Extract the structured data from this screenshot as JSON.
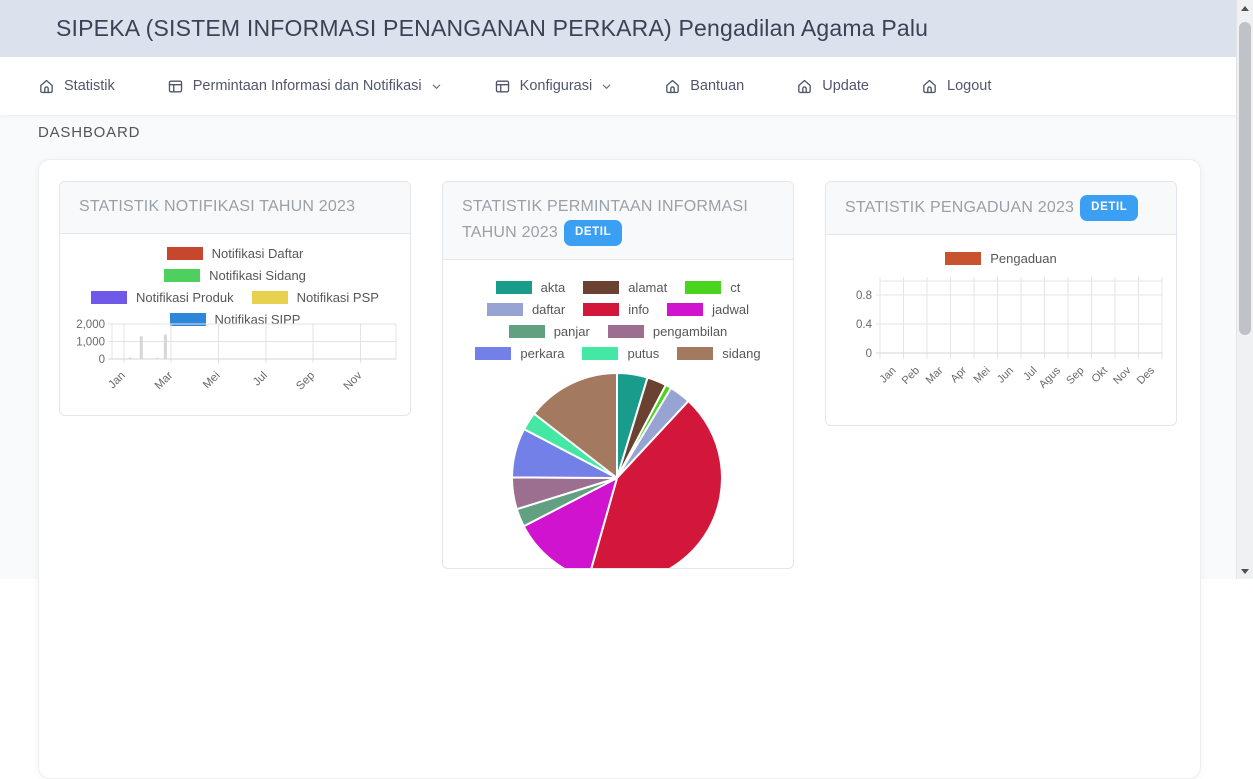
{
  "header": {
    "title": "SIPEKA (SISTEM INFORMASI PENANGANAN PERKARA) Pengadilan Agama Palu"
  },
  "navbar": {
    "items": [
      {
        "label": "Statistik",
        "icon": "home",
        "has_dropdown": false
      },
      {
        "label": "Permintaan Informasi dan Notifikasi",
        "icon": "window",
        "has_dropdown": true
      },
      {
        "label": "Konfigurasi",
        "icon": "window",
        "has_dropdown": true
      },
      {
        "label": "Bantuan",
        "icon": "home",
        "has_dropdown": false
      },
      {
        "label": "Update",
        "icon": "home",
        "has_dropdown": false
      },
      {
        "label": "Logout",
        "icon": "home",
        "has_dropdown": false
      }
    ]
  },
  "breadcrumb": "DASHBOARD",
  "theme": {
    "header_bg": "#dbe2ed",
    "accent_blue": "#3b9ff3",
    "panel_title_color": "#9aa0a8"
  },
  "chart_data": [
    {
      "id": "notifikasi",
      "type": "bar",
      "title": "STATISTIK NOTIFIKASI TAHUN 2023",
      "legend": {
        "entries": [
          {
            "label": "Notifikasi Daftar",
            "color": "#c7472e"
          },
          {
            "label": "Notifikasi Sidang",
            "color": "#4dd05e"
          },
          {
            "label": "Notifikasi Produk",
            "color": "#7058e8"
          },
          {
            "label": "Notifikasi PSP",
            "color": "#e6d24e"
          },
          {
            "label": "Notifikasi SIPP",
            "color": "#2e86d9"
          }
        ],
        "rows": [
          [
            0
          ],
          [
            1
          ],
          [
            2,
            3
          ],
          [
            4
          ]
        ]
      },
      "x_tick_labels": [
        "Jan",
        "Mar",
        "Mei",
        "Jul",
        "Sep",
        "Nov"
      ],
      "y_ticks": [
        "2,000",
        "1,000",
        "0"
      ],
      "ylim": [
        0,
        2000
      ],
      "grid": true,
      "bars": [
        {
          "x_frac": 0.064,
          "value": 80
        },
        {
          "x_frac": 0.103,
          "value": 1300
        },
        {
          "x_frac": 0.16,
          "value": 60
        },
        {
          "x_frac": 0.188,
          "value": 1400
        }
      ],
      "bar_color": "#d6d6d6"
    },
    {
      "id": "permintaan",
      "type": "pie",
      "title": "STATISTIK PERMINTAAN INFORMASI TAHUN 2023",
      "detail_button": "DETIL",
      "slices": [
        {
          "label": "akta",
          "color": "#1a9c8c",
          "pct": 4.7
        },
        {
          "label": "alamat",
          "color": "#6b4231",
          "pct": 3.0
        },
        {
          "label": "ct",
          "color": "#4ad41e",
          "pct": 0.9
        },
        {
          "label": "daftar",
          "color": "#96a3d3",
          "pct": 3.3
        },
        {
          "label": "info",
          "color": "#d2173a",
          "pct": 42.5
        },
        {
          "label": "jadwal",
          "color": "#cf13cf",
          "pct": 13.0
        },
        {
          "label": "panjar",
          "color": "#61a181",
          "pct": 2.8
        },
        {
          "label": "pengambilan",
          "color": "#9c6e90",
          "pct": 4.9
        },
        {
          "label": "perkara",
          "color": "#7280e8",
          "pct": 7.6
        },
        {
          "label": "putus",
          "color": "#44e8a4",
          "pct": 2.8
        },
        {
          "label": "sidang",
          "color": "#a37a60",
          "pct": 14.5
        }
      ],
      "legend_rows": [
        [
          0,
          1,
          2
        ],
        [
          3,
          4,
          5
        ],
        [
          6,
          7
        ],
        [
          8,
          9,
          10
        ]
      ]
    },
    {
      "id": "pengaduan",
      "type": "bar",
      "title": "STATISTIK PENGADUAN 2023",
      "detail_button": "DETIL",
      "legend": {
        "entries": [
          {
            "label": "Pengaduan",
            "color": "#c9532e"
          }
        ],
        "rows": [
          [
            0
          ]
        ]
      },
      "x_tick_labels": [
        "Jan",
        "Peb",
        "Mar",
        "Apr",
        "Mei",
        "Jun",
        "Jul",
        "Agus",
        "Sep",
        "Okt",
        "Nov",
        "Des"
      ],
      "y_ticks": [
        "0.8",
        "0.4",
        "0"
      ],
      "ylim": [
        0,
        1
      ],
      "grid": true,
      "values": [
        0,
        0,
        0,
        0,
        0,
        0,
        0,
        0,
        0,
        0,
        0,
        0
      ]
    }
  ]
}
